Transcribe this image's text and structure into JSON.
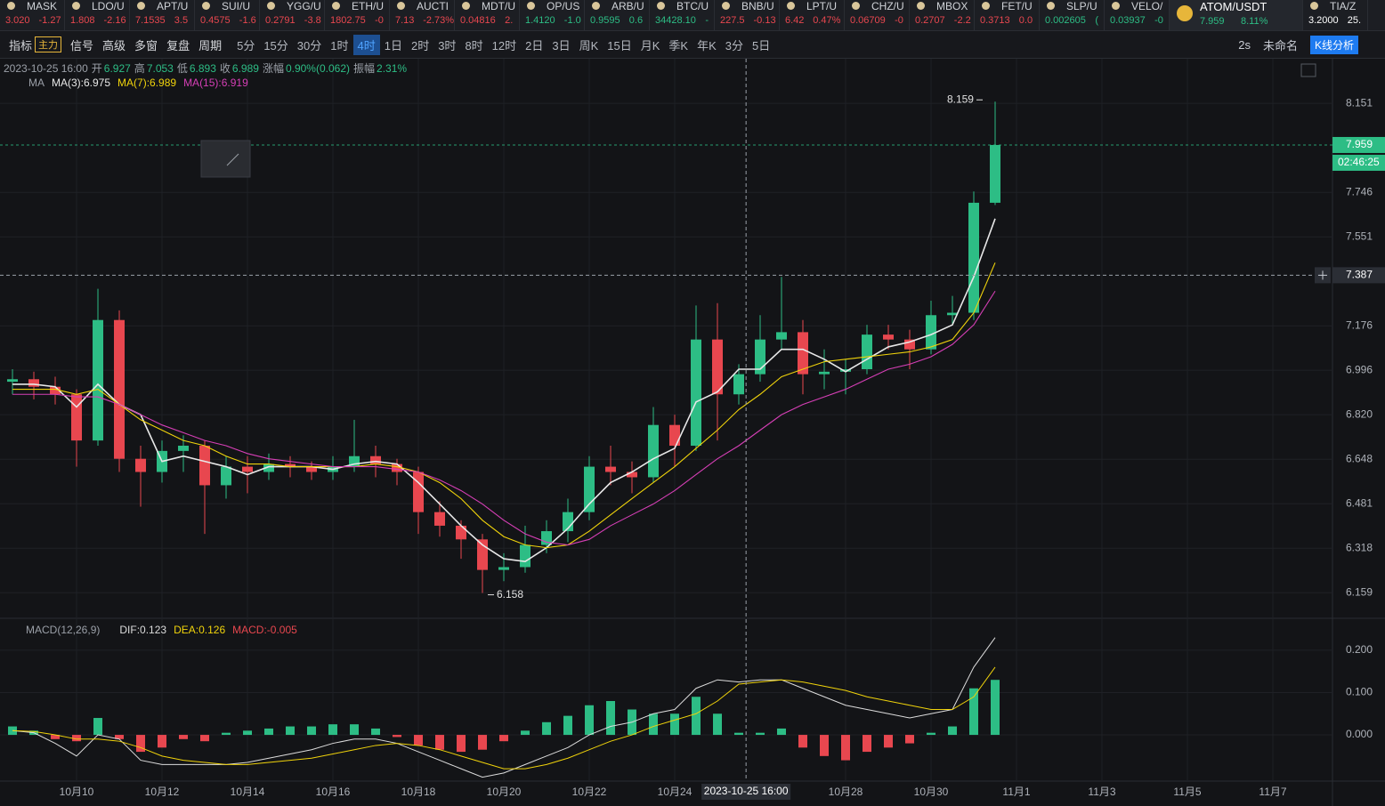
{
  "ticker": [
    {
      "symbol": "MASK",
      "price": "3.020",
      "change": "-1.27",
      "color": "#e8474f"
    },
    {
      "symbol": "LDO/U",
      "price": "1.808",
      "change": "-2.16",
      "color": "#e8474f"
    },
    {
      "symbol": "APT/U",
      "price": "7.1535",
      "change": "3.5",
      "color": "#e8474f"
    },
    {
      "symbol": "SUI/U",
      "price": "0.4575",
      "change": "-1.6",
      "color": "#e8474f"
    },
    {
      "symbol": "YGG/U",
      "price": "0.2791",
      "change": "-3.8",
      "color": "#e8474f"
    },
    {
      "symbol": "ETH/U",
      "price": "1802.75",
      "change": "-0",
      "color": "#e8474f"
    },
    {
      "symbol": "AUCTI",
      "price": "7.13",
      "change": "-2.73%",
      "color": "#e8474f"
    },
    {
      "symbol": "MDT/U",
      "price": "0.04816",
      "change": "2.",
      "color": "#e8474f"
    },
    {
      "symbol": "OP/US",
      "price": "1.4120",
      "change": "-1.0",
      "color": "#2dbd85"
    },
    {
      "symbol": "ARB/U",
      "price": "0.9595",
      "change": "0.6",
      "color": "#2dbd85"
    },
    {
      "symbol": "BTC/U",
      "price": "34428.10",
      "change": "-",
      "color": "#2dbd85"
    },
    {
      "symbol": "BNB/U",
      "price": "227.5",
      "change": "-0.13",
      "color": "#e8474f"
    },
    {
      "symbol": "LPT/U",
      "price": "6.42",
      "change": "0.47%",
      "color": "#e8474f"
    },
    {
      "symbol": "CHZ/U",
      "price": "0.06709",
      "change": "-0",
      "color": "#e8474f"
    },
    {
      "symbol": "MBOX",
      "price": "0.2707",
      "change": "-2.2",
      "color": "#e8474f"
    },
    {
      "symbol": "FET/U",
      "price": "0.3713",
      "change": "0.0",
      "color": "#e8474f"
    },
    {
      "symbol": "SLP/U",
      "price": "0.002605",
      "change": "(",
      "color": "#2dbd85"
    },
    {
      "symbol": "VELO/",
      "price": "0.03937",
      "change": "-0",
      "color": "#2dbd85"
    },
    {
      "symbol": "ATOM/USDT",
      "price": "7.959",
      "change": "8.11%",
      "color": "#2dbd85"
    },
    {
      "symbol": "TIA/Z",
      "price": "3.2000",
      "change": "25.",
      "color": "#ffffff"
    }
  ],
  "active_ticker": 18,
  "toolbar": {
    "tools": [
      "指标",
      "主力",
      "信号",
      "高级",
      "多窗",
      "复盘",
      "周期"
    ],
    "intervals": [
      "5分",
      "15分",
      "30分",
      "1时",
      "4时",
      "1日",
      "2时",
      "3时",
      "8时",
      "12时",
      "2日",
      "3日",
      "周K",
      "15日",
      "月K",
      "季K",
      "年K",
      "3分",
      "5日"
    ],
    "active_interval": 4,
    "right": [
      "2s",
      "未命名",
      "K线分析"
    ]
  },
  "info": {
    "datetime": "2023-10-25 16:00",
    "fields": [
      {
        "label": "开",
        "value": "6.927"
      },
      {
        "label": "高",
        "value": "7.053"
      },
      {
        "label": "低",
        "value": "6.893"
      },
      {
        "label": "收",
        "value": "6.989"
      },
      {
        "label": "涨幅",
        "value": "0.90%(0.062)"
      },
      {
        "label": "振幅",
        "value": "2.31%"
      }
    ]
  },
  "chart_data": [
    {
      "type": "candlestick",
      "legend_title": "MA",
      "log": true,
      "grid": true,
      "up_color": "#2dbd85",
      "down_color": "#e8474f",
      "x": [
        8.5,
        9,
        9.5,
        10,
        10.5,
        11,
        11.5,
        12,
        12.5,
        13,
        13.5,
        14,
        14.5,
        15,
        15.5,
        16,
        16.5,
        17,
        17.5,
        18,
        18.5,
        19,
        19.5,
        20,
        20.5,
        21,
        21.5,
        22,
        22.5,
        23,
        23.5,
        24,
        24.5,
        25,
        25.5,
        26,
        26.5,
        27,
        27.5,
        28,
        28.5,
        29,
        29.5,
        30,
        30.5,
        31,
        31.5
      ],
      "open": [
        6.95,
        6.96,
        6.93,
        6.9,
        6.72,
        7.2,
        6.65,
        6.6,
        6.68,
        6.7,
        6.55,
        6.62,
        6.6,
        6.63,
        6.62,
        6.6,
        6.62,
        6.66,
        6.63,
        6.6,
        6.45,
        6.4,
        6.35,
        6.24,
        6.25,
        6.33,
        6.38,
        6.45,
        6.62,
        6.6,
        6.58,
        6.78,
        6.7,
        7.12,
        6.9,
        6.98,
        7.12,
        7.15,
        6.98,
        6.99,
        7.0,
        7.14,
        7.12,
        7.08,
        7.22,
        7.23,
        7.7
      ],
      "high": [
        7.0,
        6.99,
        6.97,
        6.92,
        7.33,
        7.24,
        6.7,
        6.72,
        6.74,
        6.72,
        6.66,
        6.66,
        6.67,
        6.66,
        6.64,
        6.66,
        6.8,
        6.7,
        6.65,
        6.62,
        6.49,
        6.42,
        6.37,
        6.3,
        6.4,
        6.42,
        6.5,
        6.66,
        6.7,
        6.64,
        6.85,
        6.82,
        7.26,
        7.27,
        7.02,
        7.22,
        7.38,
        7.2,
        7.08,
        7.04,
        7.18,
        7.18,
        7.16,
        7.28,
        7.3,
        7.75,
        8.159
      ],
      "low": [
        6.9,
        6.88,
        6.86,
        6.62,
        6.7,
        6.6,
        6.47,
        6.56,
        6.6,
        6.37,
        6.5,
        6.52,
        6.57,
        6.58,
        6.57,
        6.57,
        6.6,
        6.58,
        6.55,
        6.37,
        6.36,
        6.28,
        6.158,
        6.2,
        6.23,
        6.3,
        6.34,
        6.42,
        6.55,
        6.52,
        6.56,
        6.62,
        6.68,
        6.72,
        6.86,
        6.95,
        7.08,
        6.9,
        6.92,
        6.9,
        6.98,
        7.08,
        7.0,
        7.06,
        7.18,
        7.2,
        7.69
      ],
      "close": [
        6.96,
        6.93,
        6.9,
        6.72,
        7.2,
        6.65,
        6.6,
        6.68,
        6.7,
        6.55,
        6.62,
        6.6,
        6.63,
        6.62,
        6.6,
        6.62,
        6.66,
        6.63,
        6.6,
        6.45,
        6.4,
        6.35,
        6.24,
        6.25,
        6.33,
        6.38,
        6.45,
        6.62,
        6.6,
        6.58,
        6.78,
        6.7,
        7.12,
        6.9,
        6.98,
        7.12,
        7.15,
        6.98,
        6.99,
        7.0,
        7.14,
        7.12,
        7.08,
        7.22,
        7.23,
        7.7,
        7.959
      ],
      "series": [
        {
          "name": "MA(3):6.975",
          "color": "#e8e8e8",
          "values": [
            6.94,
            6.94,
            6.93,
            6.85,
            6.94,
            6.86,
            6.82,
            6.64,
            6.66,
            6.64,
            6.62,
            6.59,
            6.62,
            6.62,
            6.62,
            6.61,
            6.63,
            6.64,
            6.63,
            6.56,
            6.48,
            6.4,
            6.33,
            6.28,
            6.27,
            6.32,
            6.39,
            6.48,
            6.56,
            6.6,
            6.65,
            6.69,
            6.87,
            6.91,
            7.0,
            7.0,
            7.08,
            7.08,
            7.04,
            6.99,
            7.04,
            7.09,
            7.11,
            7.14,
            7.18,
            7.38,
            7.63
          ]
        },
        {
          "name": "MA(7):6.989",
          "color": "#f0d30b",
          "values": [
            6.92,
            6.92,
            6.92,
            6.9,
            6.92,
            6.86,
            6.8,
            6.76,
            6.72,
            6.7,
            6.66,
            6.63,
            6.63,
            6.62,
            6.62,
            6.62,
            6.62,
            6.63,
            6.62,
            6.6,
            6.56,
            6.5,
            6.42,
            6.36,
            6.33,
            6.32,
            6.33,
            6.38,
            6.44,
            6.5,
            6.56,
            6.62,
            6.69,
            6.76,
            6.84,
            6.9,
            6.97,
            7.0,
            7.03,
            7.04,
            7.05,
            7.06,
            7.07,
            7.09,
            7.12,
            7.23,
            7.44
          ]
        },
        {
          "name": "MA(15):6.919",
          "color": "#d63fb6",
          "values": [
            6.9,
            6.9,
            6.9,
            6.89,
            6.89,
            6.86,
            6.82,
            6.78,
            6.75,
            6.72,
            6.7,
            6.67,
            6.65,
            6.64,
            6.63,
            6.62,
            6.62,
            6.62,
            6.61,
            6.6,
            6.57,
            6.53,
            6.48,
            6.42,
            6.37,
            6.34,
            6.33,
            6.35,
            6.4,
            6.44,
            6.48,
            6.53,
            6.59,
            6.65,
            6.7,
            6.76,
            6.82,
            6.86,
            6.89,
            6.92,
            6.96,
            7.0,
            7.02,
            7.05,
            7.1,
            7.18,
            7.32
          ]
        }
      ],
      "ylim": [
        6.085,
        8.362
      ],
      "yticks": [
        8.151,
        {
          "value": 7.746,
          "label": "7.746"
        },
        7.551,
        7.176,
        6.996,
        {
          "value": 6.82,
          "label": "6.820"
        },
        6.648,
        6.481,
        6.318,
        6.159
      ],
      "xlim": [
        8.208,
        39.396
      ],
      "xticks": [
        {
          "value": 10,
          "label": "10月10"
        },
        {
          "value": 12,
          "label": "10月12"
        },
        {
          "value": 14,
          "label": "10月14"
        },
        {
          "value": 16,
          "label": "10月16"
        },
        {
          "value": 18,
          "label": "10月18"
        },
        {
          "value": 20,
          "label": "10月20"
        },
        {
          "value": 22,
          "label": "10月22"
        },
        {
          "value": 24,
          "label": "10月24"
        },
        {
          "value": 28,
          "label": "10月28"
        },
        {
          "value": 30,
          "label": "10月30"
        },
        {
          "value": 32,
          "label": "11月1"
        },
        {
          "value": 34,
          "label": "11月3"
        },
        {
          "value": 36,
          "label": "11月5"
        },
        {
          "value": 38,
          "label": "11月7"
        }
      ],
      "last_price": 7.959,
      "countdown": "02:46:25",
      "crosshair": {
        "x": 25.67,
        "y": 7.387,
        "x_label": "2023-10-25 16:00"
      },
      "high_label": 8.159,
      "low_label": 6.158
    },
    {
      "type": "macd",
      "title": "MACD(12,26,9)",
      "grid": true,
      "series": [
        {
          "name": "DIF:0.123",
          "color": "#dcdcdc",
          "values": [
            0.01,
            0.005,
            -0.02,
            -0.05,
            0.0,
            -0.01,
            -0.06,
            -0.07,
            -0.07,
            -0.07,
            -0.07,
            -0.065,
            -0.055,
            -0.045,
            -0.035,
            -0.02,
            -0.01,
            -0.01,
            -0.02,
            -0.04,
            -0.06,
            -0.08,
            -0.1,
            -0.09,
            -0.07,
            -0.05,
            -0.03,
            0.0,
            0.02,
            0.03,
            0.05,
            0.06,
            0.11,
            0.13,
            0.125,
            0.13,
            0.13,
            0.11,
            0.09,
            0.07,
            0.06,
            0.05,
            0.04,
            0.05,
            0.06,
            0.16,
            0.23
          ]
        },
        {
          "name": "DEA:0.126",
          "color": "#f0d30b",
          "values": [
            0.01,
            0.008,
            0.0,
            -0.01,
            -0.01,
            -0.015,
            -0.03,
            -0.05,
            -0.06,
            -0.065,
            -0.07,
            -0.07,
            -0.065,
            -0.06,
            -0.055,
            -0.045,
            -0.035,
            -0.025,
            -0.02,
            -0.025,
            -0.035,
            -0.05,
            -0.065,
            -0.08,
            -0.08,
            -0.07,
            -0.055,
            -0.035,
            -0.015,
            0.0,
            0.02,
            0.035,
            0.05,
            0.08,
            0.12,
            0.125,
            0.13,
            0.125,
            0.115,
            0.105,
            0.09,
            0.08,
            0.07,
            0.06,
            0.06,
            0.09,
            0.16
          ]
        }
      ],
      "histogram": {
        "name": "MACD:-0.005",
        "up_color": "#2dbd85",
        "down_color": "#e8474f",
        "values": [
          0.02,
          0.01,
          -0.01,
          -0.015,
          0.04,
          -0.01,
          -0.04,
          -0.03,
          -0.01,
          -0.015,
          0.005,
          0.01,
          0.015,
          0.02,
          0.02,
          0.025,
          0.025,
          0.015,
          -0.005,
          -0.025,
          -0.035,
          -0.04,
          -0.035,
          -0.015,
          0.01,
          0.03,
          0.045,
          0.07,
          0.08,
          0.06,
          0.05,
          0.05,
          0.09,
          0.05,
          0.005,
          0.005,
          0.015,
          -0.03,
          -0.05,
          -0.06,
          -0.04,
          -0.03,
          -0.02,
          0.005,
          0.02,
          0.11,
          0.13
        ]
      },
      "ylim": [
        -0.105,
        0.265
      ],
      "yticks": [
        {
          "value": 0.2,
          "label": "0.200"
        },
        {
          "value": 0.1,
          "label": "0.100"
        },
        {
          "value": 0,
          "label": "0.000"
        }
      ]
    }
  ]
}
